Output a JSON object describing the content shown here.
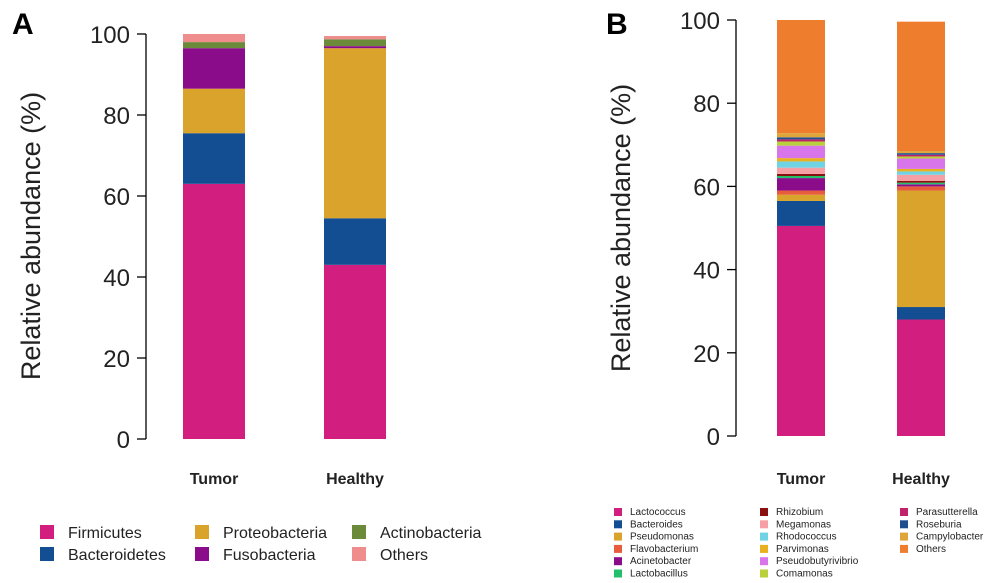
{
  "chart_data": [
    {
      "panel_label": "A",
      "type": "bar",
      "stacked": true,
      "categories": [
        "Tumor",
        "Healthy"
      ],
      "ylabel": "Relative abundance (%)",
      "xlabel": "",
      "ylim": [
        0,
        100
      ],
      "yticks": [
        "0",
        "20",
        "40",
        "60",
        "80",
        "100"
      ],
      "legend_position": "bottom",
      "series": [
        {
          "name": "Firmicutes",
          "color": "#d21e7e",
          "values": [
            63.0,
            43.0
          ]
        },
        {
          "name": "Bacteroidetes",
          "color": "#134e92",
          "values": [
            12.5,
            11.5
          ]
        },
        {
          "name": "Proteobacteria",
          "color": "#d9a32c",
          "values": [
            11.0,
            42.0
          ]
        },
        {
          "name": "Fusobacteria",
          "color": "#8a0c8a",
          "values": [
            10.0,
            0.5
          ]
        },
        {
          "name": "Actinobacteria",
          "color": "#6b8a3a",
          "values": [
            1.5,
            1.7
          ]
        },
        {
          "name": "Others",
          "color": "#ef8c8c",
          "values": [
            2.0,
            0.8
          ]
        }
      ]
    },
    {
      "panel_label": "B",
      "type": "bar",
      "stacked": true,
      "categories": [
        "Tumor",
        "Healthy"
      ],
      "ylabel": "Relative abundance (%)",
      "xlabel": "",
      "ylim": [
        0,
        100
      ],
      "yticks": [
        "0",
        "20",
        "40",
        "60",
        "80",
        "100"
      ],
      "legend_position": "bottom",
      "series": [
        {
          "name": "Lactococcus",
          "color": "#d21e7e",
          "values": [
            50.5,
            28.0
          ]
        },
        {
          "name": "Bacteroides",
          "color": "#134e92",
          "values": [
            6.0,
            3.0
          ]
        },
        {
          "name": "Pseudomonas",
          "color": "#d9a32c",
          "values": [
            1.5,
            28.0
          ]
        },
        {
          "name": "Flavobacterium",
          "color": "#e65c3c",
          "values": [
            1.0,
            1.0
          ]
        },
        {
          "name": "Acinetobacter",
          "color": "#8a0c8a",
          "values": [
            3.0,
            0.5
          ]
        },
        {
          "name": "Lactobacillus",
          "color": "#22c06a",
          "values": [
            0.5,
            0.4
          ]
        },
        {
          "name": "Rhizobium",
          "color": "#8b1010",
          "values": [
            0.5,
            0.4
          ]
        },
        {
          "name": "Megamonas",
          "color": "#f6a0a6",
          "values": [
            1.5,
            1.5
          ]
        },
        {
          "name": "Rhodococcus",
          "color": "#6fd3e3",
          "values": [
            1.5,
            0.8
          ]
        },
        {
          "name": "Parvimonas",
          "color": "#e9b020",
          "values": [
            0.8,
            0.6
          ]
        },
        {
          "name": "Pseudobutyrivibrio",
          "color": "#d975ea",
          "values": [
            3.0,
            2.5
          ]
        },
        {
          "name": "Comamonas",
          "color": "#b9cf3c",
          "values": [
            1.0,
            0.5
          ]
        },
        {
          "name": "Parasutterella",
          "color": "#c1206b",
          "values": [
            0.5,
            0.4
          ]
        },
        {
          "name": "Roseburia",
          "color": "#1f4f8f",
          "values": [
            0.5,
            0.4
          ]
        },
        {
          "name": "Campylobacter",
          "color": "#e0a53a",
          "values": [
            1.0,
            0.5
          ]
        },
        {
          "name": "Others",
          "color": "#ef7d2e",
          "values": [
            27.2,
            31.1
          ]
        }
      ]
    }
  ]
}
